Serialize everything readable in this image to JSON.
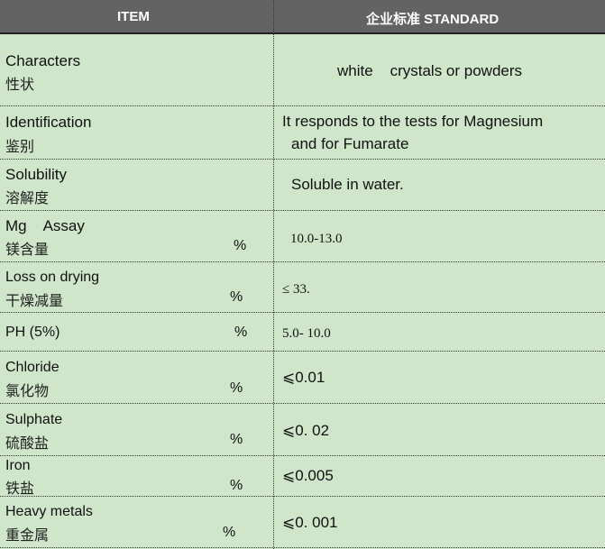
{
  "header": {
    "item": "ITEM",
    "standard": "企业标准 STANDARD"
  },
  "rows": [
    {
      "en": "Characters",
      "zh": "性状",
      "pct": "",
      "value": "white    crystals or powders"
    },
    {
      "en": "Identification",
      "zh": "鉴别",
      "pct": "",
      "value": "It responds to the tests for Magnesium",
      "value2": "and for Fumarate"
    },
    {
      "en": "Solubility",
      "zh": "溶解度",
      "pct": "",
      "value": "Soluble in water."
    },
    {
      "en": "Mg    Assay",
      "zh": "镁含量",
      "pct": "%",
      "value": "10.0-13.0"
    },
    {
      "en": "Loss on drying",
      "zh": "干燥减量",
      "pct": "%",
      "value": "≤ 33."
    },
    {
      "en": "PH (5%)",
      "zh": "",
      "pct": "%",
      "value": "5.0- 10.0"
    },
    {
      "en": "Chloride",
      "zh": "氯化物",
      "pct": "%",
      "value": "⩽0.01"
    },
    {
      "en": "Sulphate",
      "zh": "硫酸盐",
      "pct": "%",
      "value": "⩽0. 02"
    },
    {
      "en": "Iron",
      "zh": "铁盐",
      "pct": "%",
      "value": "⩽0.005"
    },
    {
      "en": "Heavy metals",
      "zh": "重金属",
      "pct": "%",
      "value": "⩽0. 001"
    }
  ]
}
